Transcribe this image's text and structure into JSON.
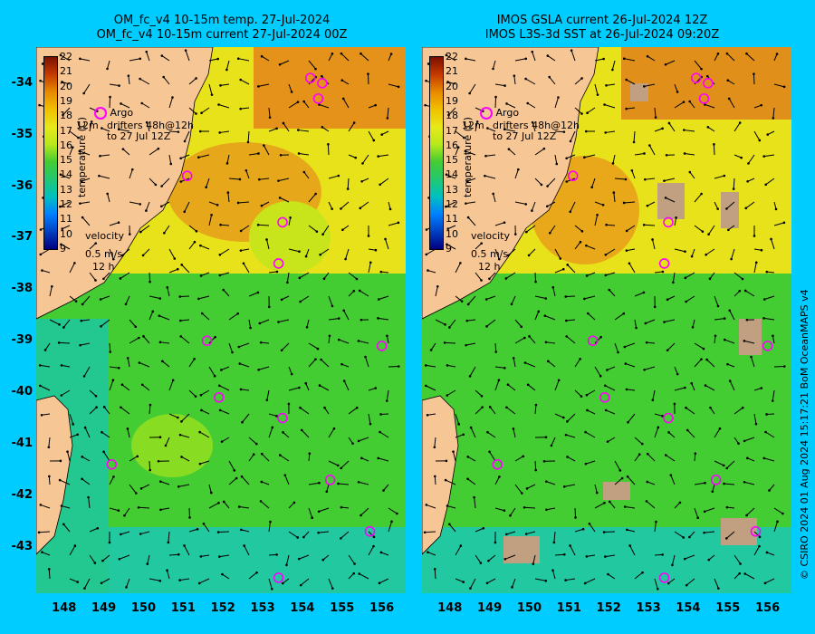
{
  "left_panel": {
    "title_line1": "OM_fc_v4  10-15m temp. 27-Jul-2024",
    "title_line2": "OM_fc_v4  10-15m current 27-Jul-2024 00Z"
  },
  "right_panel": {
    "title_line1": "IMOS GSLA current 26-Jul-2024 12Z",
    "title_line2": "IMOS L3S-3d SST at 26-Jul-2024 09:20Z"
  },
  "legend": {
    "argo": "Argo",
    "drifters_line1": "drifters 48h@12h",
    "drifters_line2": "to 27 Jul 12Z",
    "prefix": "12m",
    "velocity_title": "velocity",
    "velocity_scale": "0.5 m/s",
    "velocity_time": "12 h",
    "temperature_axis": "temperature (C)"
  },
  "colorbar_ticks": [
    "22",
    "21",
    "20",
    "19",
    "18",
    "17",
    "16",
    "15",
    "14",
    "13",
    "12",
    "11",
    "10",
    "9"
  ],
  "lat_ticks": [
    "-34",
    "-35",
    "-36",
    "-37",
    "-38",
    "-39",
    "-40",
    "-41",
    "-42",
    "-43"
  ],
  "lon_ticks": [
    "148",
    "149",
    "150",
    "151",
    "152",
    "153",
    "154",
    "155",
    "156"
  ],
  "credit": "© CSIRO 2024   01 Aug 2024 15:17:21 BoM OceanMAPS v4",
  "colors": {
    "background": "#00ccff",
    "land": "#f7c695",
    "warm": "#e08a00",
    "yellow": "#f0e010",
    "green": "#33cc33",
    "teal": "#00c8a0",
    "argo_marker": "#ff00ff",
    "cloud": "#c0a080"
  },
  "argo_floats": [
    {
      "lon": 154.2,
      "lat": -33.9
    },
    {
      "lon": 154.5,
      "lat": -34.0
    },
    {
      "lon": 154.4,
      "lat": -34.3
    },
    {
      "lon": 151.1,
      "lat": -35.8
    },
    {
      "lon": 153.5,
      "lat": -36.7
    },
    {
      "lon": 153.4,
      "lat": -37.5
    },
    {
      "lon": 151.6,
      "lat": -39.0
    },
    {
      "lon": 156.0,
      "lat": -39.1
    },
    {
      "lon": 151.9,
      "lat": -40.1
    },
    {
      "lon": 153.5,
      "lat": -40.5
    },
    {
      "lon": 149.2,
      "lat": -41.4
    },
    {
      "lon": 154.7,
      "lat": -41.7
    },
    {
      "lon": 155.7,
      "lat": -42.7
    },
    {
      "lon": 153.4,
      "lat": -43.6
    }
  ]
}
